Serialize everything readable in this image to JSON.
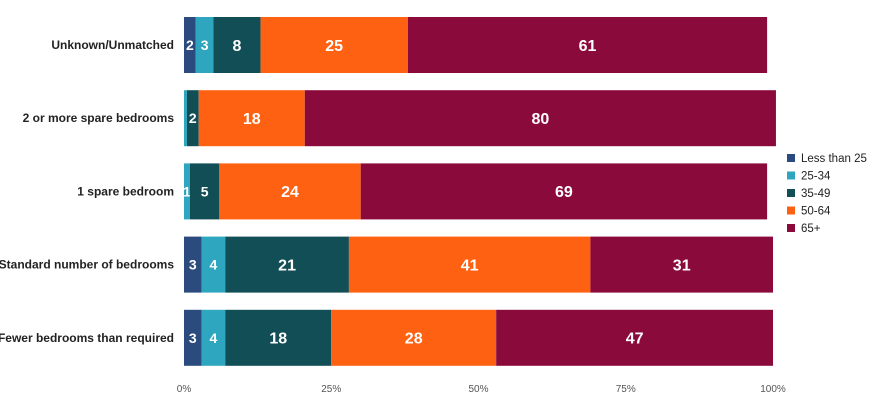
{
  "chart_data": {
    "type": "bar",
    "orientation": "horizontal",
    "stacked": "percent",
    "title": "",
    "xlabel": "",
    "ylabel": "",
    "xlim": [
      0,
      100
    ],
    "xticks": [
      "0%",
      "25%",
      "50%",
      "75%",
      "100%"
    ],
    "categories": [
      "Unknown/Unmatched",
      "2 or more spare bedrooms",
      "1 spare bedroom",
      "Standard number of bedrooms",
      "Fewer bedrooms than required"
    ],
    "series": [
      {
        "name": "Less than 25",
        "color": "#2b4a7d",
        "values": [
          2,
          0,
          0,
          3,
          3
        ],
        "labels": [
          "2",
          "",
          "",
          "3",
          "3"
        ]
      },
      {
        "name": "25-34",
        "color": "#2ea6bf",
        "values": [
          3,
          0.5,
          1,
          4,
          4
        ],
        "labels": [
          "3",
          "",
          "1",
          "4",
          "4"
        ]
      },
      {
        "name": "35-49",
        "color": "#124e55",
        "values": [
          8,
          2,
          5,
          21,
          18
        ],
        "labels": [
          "8",
          "2",
          "5",
          "21",
          "18"
        ]
      },
      {
        "name": "50-64",
        "color": "#ff6112",
        "values": [
          25,
          18,
          24,
          41,
          28
        ],
        "labels": [
          "25",
          "18",
          "24",
          "41",
          "28"
        ]
      },
      {
        "name": "65+",
        "color": "#8b0a3c",
        "values": [
          61,
          80,
          69,
          31,
          47
        ],
        "labels": [
          "61",
          "80",
          "69",
          "31",
          "47"
        ]
      }
    ],
    "grid": false,
    "legend_position": "right"
  }
}
